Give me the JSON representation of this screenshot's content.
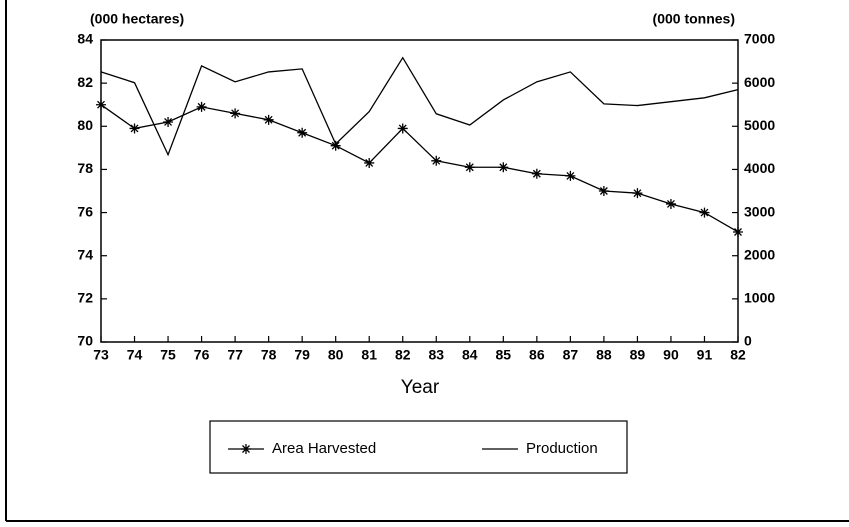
{
  "chart_data": {
    "type": "line",
    "y_label": "(000 hectares)",
    "y2_label": "(000 tonnes)",
    "x_label": "Year",
    "categories": [
      "73",
      "74",
      "75",
      "76",
      "77",
      "78",
      "79",
      "80",
      "81",
      "82",
      "83",
      "84",
      "85",
      "86",
      "87",
      "88",
      "89",
      "90",
      "91",
      "82"
    ],
    "series": [
      {
        "name": "Area Harvested",
        "color": "#000000",
        "marker": "star",
        "axis": "y",
        "values": [
          81.0,
          79.9,
          80.2,
          80.9,
          80.6,
          80.3,
          79.7,
          79.1,
          78.3,
          79.9,
          78.4,
          78.1,
          78.1,
          77.8,
          77.7,
          77.0,
          76.9,
          76.4,
          76.0,
          75.1
        ]
      },
      {
        "name": "Production",
        "color": "#000000",
        "axis": "y2",
        "values": [
          6260,
          6010,
          4340,
          6400,
          6030,
          6260,
          6330,
          4590,
          5340,
          6590,
          5290,
          5030,
          5610,
          6030,
          6260,
          5520,
          5480,
          5570,
          5660,
          5850
        ]
      }
    ],
    "ylim": [
      70,
      84
    ],
    "yticks": [
      70,
      72,
      74,
      76,
      78,
      80,
      82,
      84
    ],
    "y2lim": [
      0,
      7000
    ],
    "y2ticks": [
      0,
      1000,
      2000,
      3000,
      4000,
      5000,
      6000,
      7000
    ]
  }
}
